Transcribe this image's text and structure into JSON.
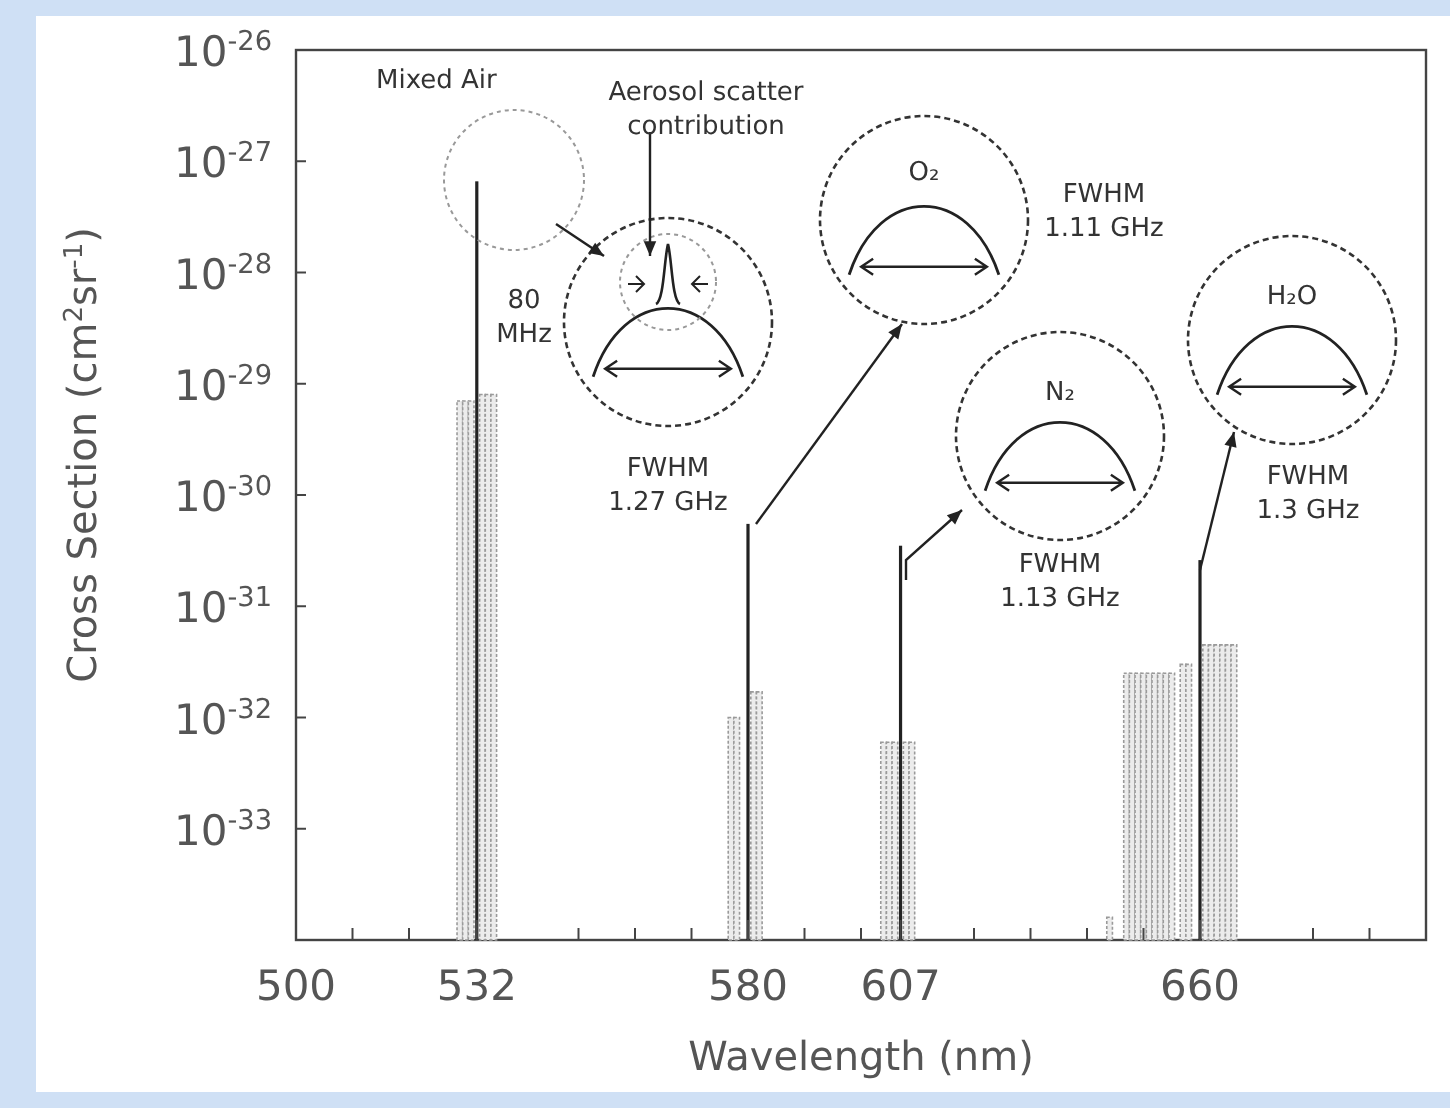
{
  "chart_data": {
    "type": "bar",
    "xlabel": "Wavelength (nm)",
    "ylabel": "Cross Section (cm$^{2}$sr$^{-1}$)",
    "log": true,
    "xlim": [
      500,
      700
    ],
    "xticks": [
      500,
      {
        "value": 510,
        "label": null
      },
      {
        "value": 520,
        "label": null
      },
      532,
      {
        "value": 550,
        "label": null
      },
      {
        "value": 560,
        "label": null
      },
      {
        "value": 570,
        "label": null
      },
      580,
      {
        "value": 590,
        "label": null
      },
      {
        "value": 600,
        "label": null
      },
      607,
      {
        "value": 620,
        "label": null
      },
      {
        "value": 630,
        "label": null
      },
      {
        "value": 640,
        "label": null
      },
      {
        "value": 650,
        "label": null
      },
      660,
      {
        "value": 680,
        "label": null
      },
      {
        "value": 690,
        "label": null
      }
    ],
    "ylim": [
      1e-34,
      1e-26
    ],
    "yticks": [
      {
        "value": 1e-33,
        "label": "10$^{-33}$"
      },
      {
        "value": 1e-32,
        "label": "10$^{-32}$"
      },
      {
        "value": 1e-31,
        "label": "10$^{-31}$"
      },
      {
        "value": 1e-30,
        "label": "10$^{-30}$"
      },
      {
        "value": 1e-29,
        "label": "10$^{-29}$"
      },
      {
        "value": 1e-28,
        "label": "10$^{-28}$"
      },
      {
        "value": 1e-27,
        "label": "10$^{-27}$"
      },
      {
        "value": 1e-26,
        "label": "10$^{-26}$"
      }
    ],
    "series": [
      {
        "color": "#222222",
        "x": [
          532,
          580,
          607,
          660
        ],
        "values": [
          6.6e-28,
          5.5e-31,
          3.5e-31,
          2.6e-31
        ]
      },
      {
        "color": "#9a9a9a",
        "x": [
          529,
          530,
          531,
          533,
          534,
          535,
          577,
          578,
          581,
          582,
          604,
          605,
          606,
          608,
          609,
          644,
          647,
          648,
          649,
          650,
          651,
          652,
          653,
          654,
          655,
          657,
          658,
          661,
          662,
          663,
          664,
          665,
          666
        ],
        "values": [
          7e-30,
          7e-30,
          7e-30,
          8e-30,
          8e-30,
          8e-30,
          1e-32,
          1e-32,
          1.7e-32,
          1.7e-32,
          6e-33,
          6e-33,
          6e-33,
          6e-33,
          6e-33,
          1.6e-34,
          2.5e-32,
          2.5e-32,
          2.5e-32,
          2.5e-32,
          2.5e-32,
          2.5e-32,
          2.5e-32,
          2.5e-32,
          2.5e-32,
          3e-32,
          3e-32,
          4.5e-32,
          4.5e-32,
          4.5e-32,
          4.5e-32,
          4.5e-32,
          4.5e-32
        ]
      }
    ],
    "annotations": [
      "Mixed Air",
      "Aerosol scatter\ncontribution",
      "80\nMHz",
      "FWHM\n1.27 GHz",
      "O₂",
      "FWHM\n1.11 GHz",
      "N₂",
      "FWHM\n1.13 GHz",
      "H₂O",
      "FWHM\n1.3 GHz"
    ]
  }
}
